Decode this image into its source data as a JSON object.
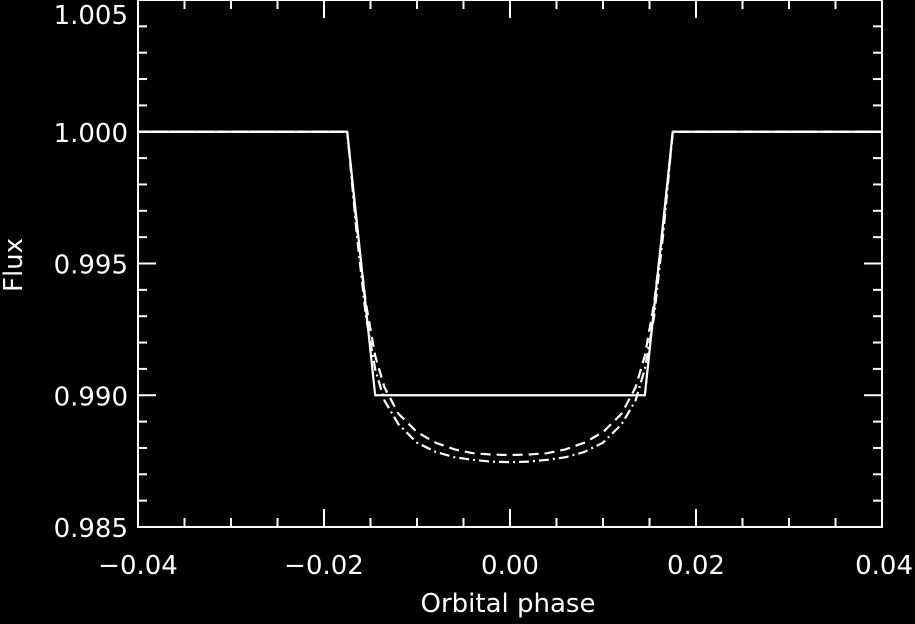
{
  "chart_data": {
    "type": "line",
    "title": "",
    "xlabel": "Orbital phase",
    "ylabel": "Flux",
    "xlim": [
      -0.04,
      0.04
    ],
    "ylim": [
      0.985,
      1.005
    ],
    "x_ticks": [
      "−0.04",
      "−0.02",
      "0.00",
      "0.02",
      "0.04"
    ],
    "y_ticks": [
      "0.985",
      "0.990",
      "0.995",
      "1.000",
      "1.005"
    ],
    "grid": false,
    "background": "#000000",
    "foreground": "#ffffff",
    "series": [
      {
        "style": "solid",
        "x": [
          -0.04,
          -0.0175,
          -0.0145,
          0.0145,
          0.0175,
          0.04
        ],
        "y": [
          1.0,
          1.0,
          0.99,
          0.99,
          1.0,
          1.0
        ]
      },
      {
        "style": "dashed",
        "x": [
          -0.04,
          -0.0175,
          -0.0165,
          -0.0155,
          -0.0145,
          -0.0135,
          -0.012,
          -0.01,
          -0.008,
          -0.006,
          -0.004,
          -0.002,
          0.0,
          0.002,
          0.004,
          0.006,
          0.008,
          0.01,
          0.012,
          0.0135,
          0.0145,
          0.0155,
          0.0165,
          0.0175,
          0.04
        ],
        "y": [
          1.0,
          1.0,
          0.9965,
          0.9935,
          0.9915,
          0.9903,
          0.9893,
          0.9886,
          0.9882,
          0.98795,
          0.9878,
          0.98775,
          0.98773,
          0.98775,
          0.9878,
          0.98795,
          0.9882,
          0.9886,
          0.9893,
          0.9903,
          0.9915,
          0.9935,
          0.9965,
          1.0,
          1.0
        ]
      },
      {
        "style": "dash-dot",
        "x": [
          -0.04,
          -0.0175,
          -0.0165,
          -0.0155,
          -0.0145,
          -0.0135,
          -0.012,
          -0.01,
          -0.008,
          -0.006,
          -0.004,
          -0.002,
          0.0,
          0.002,
          0.004,
          0.006,
          0.008,
          0.01,
          0.012,
          0.0135,
          0.0145,
          0.0155,
          0.0165,
          0.0175,
          0.04
        ],
        "y": [
          1.0,
          1.0,
          0.9962,
          0.993,
          0.991,
          0.9898,
          0.9889,
          0.9882,
          0.98785,
          0.98765,
          0.98755,
          0.98748,
          0.98746,
          0.98748,
          0.98755,
          0.98765,
          0.98785,
          0.9882,
          0.9889,
          0.9898,
          0.991,
          0.993,
          0.9962,
          1.0,
          1.0
        ]
      }
    ]
  }
}
